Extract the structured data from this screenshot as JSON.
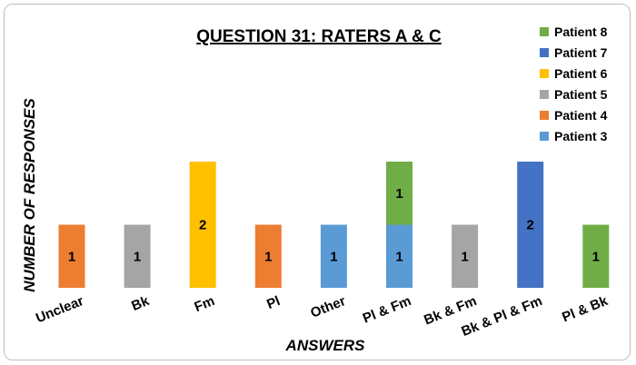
{
  "chart_data": {
    "type": "bar",
    "stacked": true,
    "title": "QUESTION 31: RATERS A & C",
    "xlabel": "ANSWERS",
    "ylabel": "NUMBER OF RESPONSES",
    "ylim": [
      0,
      2
    ],
    "grid": false,
    "legend_position": "top-right",
    "categories": [
      "Unclear",
      "Bk",
      "Fm",
      "Pl",
      "Other",
      "Pl & Fm",
      "Bk & Fm",
      "Bk & Pl & Fm",
      "Pl & Bk"
    ],
    "series": [
      {
        "name": "Patient 3",
        "color": "#5b9bd5",
        "values": [
          0,
          0,
          0,
          0,
          1,
          1,
          0,
          0,
          0
        ]
      },
      {
        "name": "Patient 4",
        "color": "#ed7d31",
        "values": [
          1,
          0,
          0,
          1,
          0,
          0,
          0,
          0,
          0
        ]
      },
      {
        "name": "Patient 5",
        "color": "#a5a5a5",
        "values": [
          0,
          1,
          0,
          0,
          0,
          0,
          1,
          0,
          0
        ]
      },
      {
        "name": "Patient 6",
        "color": "#ffc000",
        "values": [
          0,
          0,
          2,
          0,
          0,
          0,
          0,
          0,
          0
        ]
      },
      {
        "name": "Patient 7",
        "color": "#4472c4",
        "values": [
          0,
          0,
          0,
          0,
          0,
          0,
          0,
          2,
          0
        ]
      },
      {
        "name": "Patient 8",
        "color": "#70ad47",
        "values": [
          0,
          0,
          0,
          0,
          0,
          1,
          0,
          0,
          1
        ]
      }
    ]
  }
}
